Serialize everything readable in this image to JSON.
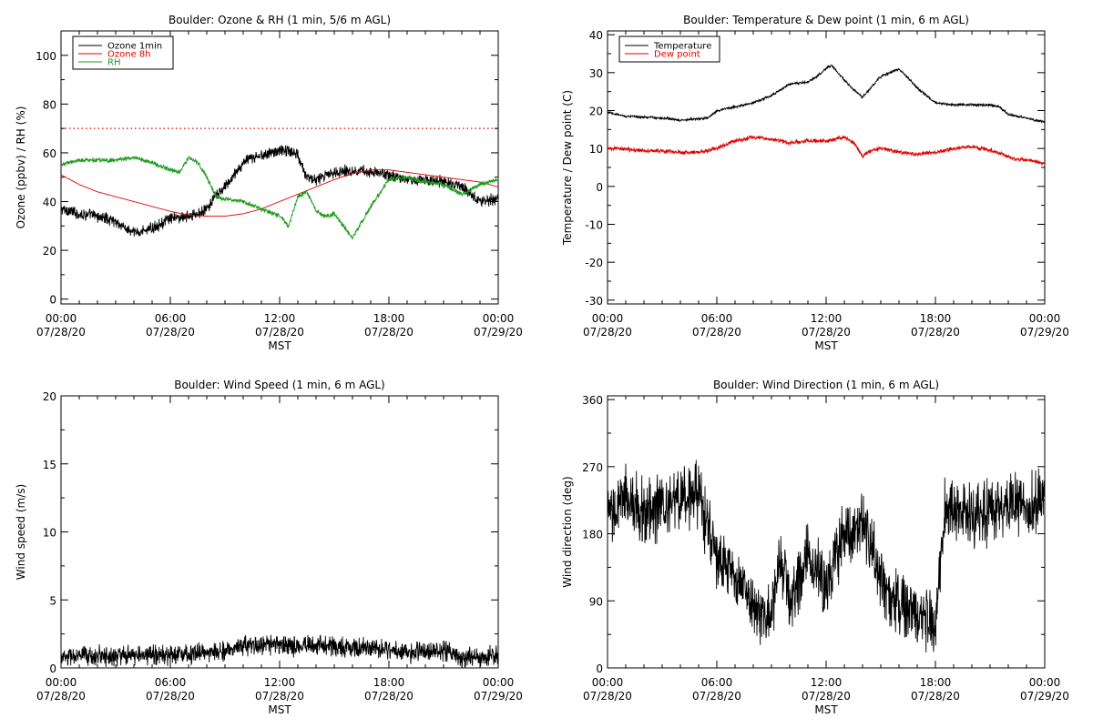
{
  "colors": {
    "black": "#000000",
    "red": "#e00000",
    "green": "#1a9a1a"
  },
  "chart_data": [
    {
      "type": "line",
      "title": "Boulder: Ozone & RH (1 min, 5/6 m AGL)",
      "ylabel": "Ozone (ppbv) / RH (%)",
      "xlabel": "MST",
      "xlim": [
        0,
        24
      ],
      "ylim": [
        -2,
        110
      ],
      "yticks": [
        0,
        20,
        40,
        60,
        80,
        100
      ],
      "xticks": [
        {
          "time": "00:00",
          "date": "07/28/20"
        },
        {
          "time": "06:00",
          "date": "07/28/20"
        },
        {
          "time": "12:00",
          "date": "07/28/20"
        },
        {
          "time": "18:00",
          "date": "07/28/20"
        },
        {
          "time": "00:00",
          "date": "07/29/20"
        }
      ],
      "legend": "top-left",
      "reference_line": {
        "y": 70,
        "color": "red",
        "style": "dotted"
      },
      "series": [
        {
          "name": "Ozone 1min",
          "color": "black",
          "noise": 1.8,
          "x": [
            0,
            1,
            2,
            3,
            3.5,
            4,
            5,
            6,
            7,
            7.5,
            8,
            8.5,
            9,
            10,
            11,
            12,
            12.5,
            13,
            13.5,
            14,
            15,
            16,
            17,
            18,
            19,
            20,
            21,
            22,
            23,
            24
          ],
          "values": [
            37,
            35,
            34,
            32,
            29,
            27,
            29,
            33,
            34,
            35,
            37,
            42,
            46,
            56,
            59,
            61,
            61,
            59,
            50,
            49,
            52,
            53,
            52,
            51,
            49,
            49,
            48,
            46,
            40,
            41
          ]
        },
        {
          "name": "Ozone 8h",
          "color": "red",
          "noise": 0,
          "x": [
            0,
            1,
            2,
            3,
            4,
            5,
            6,
            7,
            8,
            9,
            10,
            11,
            12,
            13,
            14,
            15,
            16,
            17,
            18,
            19,
            20,
            21,
            22,
            23,
            24
          ],
          "values": [
            51,
            47,
            44,
            42,
            40,
            38,
            36,
            34.5,
            34,
            34,
            35,
            37,
            40,
            43,
            46,
            49,
            51.5,
            53,
            53,
            52,
            51,
            50,
            49,
            48,
            46
          ]
        },
        {
          "name": "RH",
          "color": "green",
          "noise": 0.7,
          "x": [
            0,
            1,
            2,
            3,
            4,
            5,
            6,
            6.5,
            7,
            7.5,
            8,
            8.5,
            9,
            10,
            11,
            12,
            12.5,
            13,
            13.5,
            14,
            14.5,
            15,
            16,
            17,
            18,
            19,
            20,
            21,
            22,
            23,
            24
          ],
          "values": [
            55,
            57,
            57,
            57,
            58,
            56,
            53,
            52,
            58,
            56,
            50,
            42,
            41,
            40,
            37,
            34,
            30,
            42,
            44,
            36,
            34,
            35,
            25,
            38,
            49,
            50,
            48,
            47,
            43,
            47,
            49
          ]
        }
      ]
    },
    {
      "type": "line",
      "title": "Boulder: Temperature & Dew point (1 min, 6 m AGL)",
      "ylabel": "Temperature / Dew point (C)",
      "xlabel": "MST",
      "xlim": [
        0,
        24
      ],
      "ylim": [
        -31,
        41
      ],
      "yticks": [
        -30,
        -20,
        -10,
        0,
        10,
        20,
        30,
        40
      ],
      "xticks": [
        {
          "time": "00:00",
          "date": "07/28/20"
        },
        {
          "time": "06:00",
          "date": "07/28/20"
        },
        {
          "time": "12:00",
          "date": "07/28/20"
        },
        {
          "time": "18:00",
          "date": "07/28/20"
        },
        {
          "time": "00:00",
          "date": "07/29/20"
        }
      ],
      "legend": "top-left",
      "series": [
        {
          "name": "Temperature",
          "color": "black",
          "noise": 0.25,
          "x": [
            0,
            0.5,
            1,
            2,
            3,
            4,
            5,
            5.5,
            6,
            7,
            8,
            9,
            10,
            11,
            11.5,
            12,
            12.3,
            13,
            13.5,
            14,
            15,
            15.5,
            16,
            17,
            18,
            19,
            20,
            21,
            21.5,
            22,
            23,
            24
          ],
          "values": [
            19.5,
            19,
            18.5,
            18.3,
            18,
            17.5,
            17.8,
            18,
            20,
            21,
            22,
            24,
            27,
            27.5,
            29,
            31,
            32,
            28,
            25.5,
            23.5,
            29,
            30,
            31,
            26,
            22,
            21.5,
            21.5,
            21.5,
            21,
            19,
            18,
            17
          ]
        },
        {
          "name": "Dew point",
          "color": "red",
          "noise": 0.4,
          "x": [
            0,
            1,
            2,
            3,
            4,
            5,
            6,
            7,
            8,
            9,
            10,
            11,
            12,
            13,
            13.5,
            14,
            14.5,
            15,
            16,
            17,
            18,
            19,
            20,
            21,
            22,
            22.5,
            23,
            24
          ],
          "values": [
            10,
            9.8,
            9.5,
            9.3,
            9,
            9,
            10,
            12,
            13,
            12.5,
            11.5,
            12,
            12,
            13,
            11.5,
            8,
            9.5,
            10,
            9,
            8.5,
            9,
            10,
            10.5,
            9.5,
            8,
            7,
            7,
            6
          ]
        }
      ]
    },
    {
      "type": "line",
      "title": "Boulder: Wind Speed (1 min, 6 m AGL)",
      "ylabel": "Wind speed (m/s)",
      "xlabel": "MST",
      "xlim": [
        0,
        24
      ],
      "ylim": [
        0,
        20
      ],
      "yticks": [
        0,
        5,
        10,
        15,
        20
      ],
      "xticks": [
        {
          "time": "00:00",
          "date": "07/28/20"
        },
        {
          "time": "06:00",
          "date": "07/28/20"
        },
        {
          "time": "12:00",
          "date": "07/28/20"
        },
        {
          "time": "18:00",
          "date": "07/28/20"
        },
        {
          "time": "00:00",
          "date": "07/29/20"
        }
      ],
      "series": [
        {
          "name": "",
          "color": "black",
          "noise": 0.55,
          "x": [
            0,
            2,
            4,
            6,
            8,
            9,
            10,
            11,
            12,
            13,
            14,
            15,
            16,
            17,
            18,
            19,
            20,
            21,
            22,
            23,
            24
          ],
          "values": [
            0.8,
            0.9,
            0.9,
            1.0,
            1.1,
            1.3,
            1.6,
            1.7,
            1.7,
            1.6,
            1.7,
            1.6,
            1.5,
            1.4,
            1.4,
            1.1,
            1.2,
            1.3,
            0.7,
            0.8,
            0.9
          ]
        }
      ]
    },
    {
      "type": "line",
      "title": "Boulder: Wind Direction (1 min, 6 m AGL)",
      "ylabel": "Wind direction (deg)",
      "xlabel": "MST",
      "xlim": [
        0,
        24
      ],
      "ylim": [
        0,
        365
      ],
      "yticks": [
        0,
        90,
        180,
        270,
        360
      ],
      "xticks": [
        {
          "time": "00:00",
          "date": "07/28/20"
        },
        {
          "time": "06:00",
          "date": "07/28/20"
        },
        {
          "time": "12:00",
          "date": "07/28/20"
        },
        {
          "time": "18:00",
          "date": "07/28/20"
        },
        {
          "time": "00:00",
          "date": "07/29/20"
        }
      ],
      "series": [
        {
          "name": "",
          "color": "black",
          "noise": 32,
          "x": [
            0,
            1,
            2,
            3,
            4,
            5,
            5.5,
            6,
            7,
            8,
            9,
            9.5,
            10,
            11,
            12,
            13,
            14,
            15,
            16,
            17,
            18,
            18.5,
            19,
            20,
            21,
            22,
            23,
            24
          ],
          "values": [
            200,
            230,
            210,
            215,
            230,
            230,
            190,
            150,
            120,
            85,
            60,
            150,
            90,
            150,
            110,
            180,
            200,
            120,
            80,
            70,
            60,
            210,
            215,
            205,
            210,
            225,
            215,
            230
          ]
        }
      ]
    }
  ]
}
